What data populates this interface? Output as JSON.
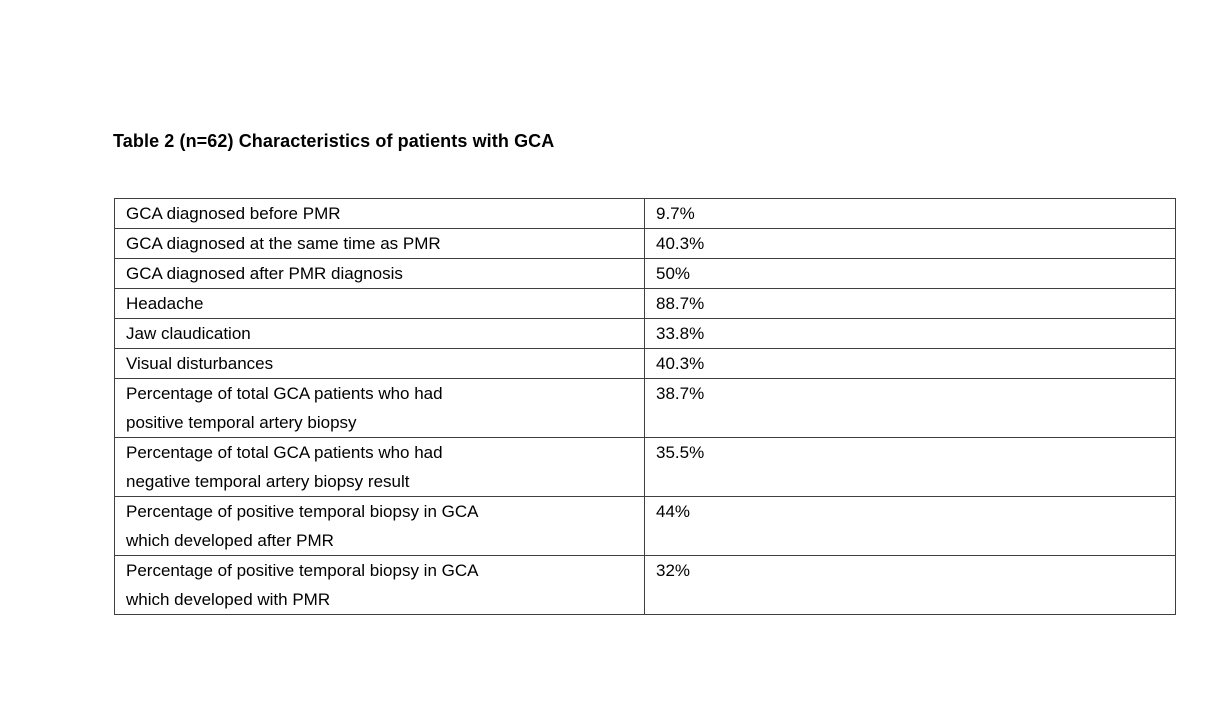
{
  "page": {
    "title": "Table 2 (n=62) Characteristics of patients with GCA"
  },
  "table": {
    "rows": [
      {
        "label": "GCA diagnosed before PMR",
        "value": "9.7%"
      },
      {
        "label": "GCA diagnosed at the same time as PMR",
        "value": "40.3%"
      },
      {
        "label": "GCA diagnosed after PMR diagnosis",
        "value": "50%"
      },
      {
        "label": "Headache",
        "value": "88.7%"
      },
      {
        "label": "Jaw claudication",
        "value": "33.8%"
      },
      {
        "label": "Visual disturbances",
        "value": "40.3%"
      },
      {
        "label": "Percentage of total GCA patients who had\npositive temporal artery biopsy",
        "value": "38.7%"
      },
      {
        "label": "Percentage of total GCA patients who had\nnegative temporal artery biopsy result",
        "value": "35.5%"
      },
      {
        "label": "Percentage of positive temporal biopsy in GCA\nwhich developed after PMR",
        "value": "44%"
      },
      {
        "label": "Percentage of positive temporal biopsy in GCA\nwhich developed with PMR",
        "value": "32%"
      }
    ]
  }
}
